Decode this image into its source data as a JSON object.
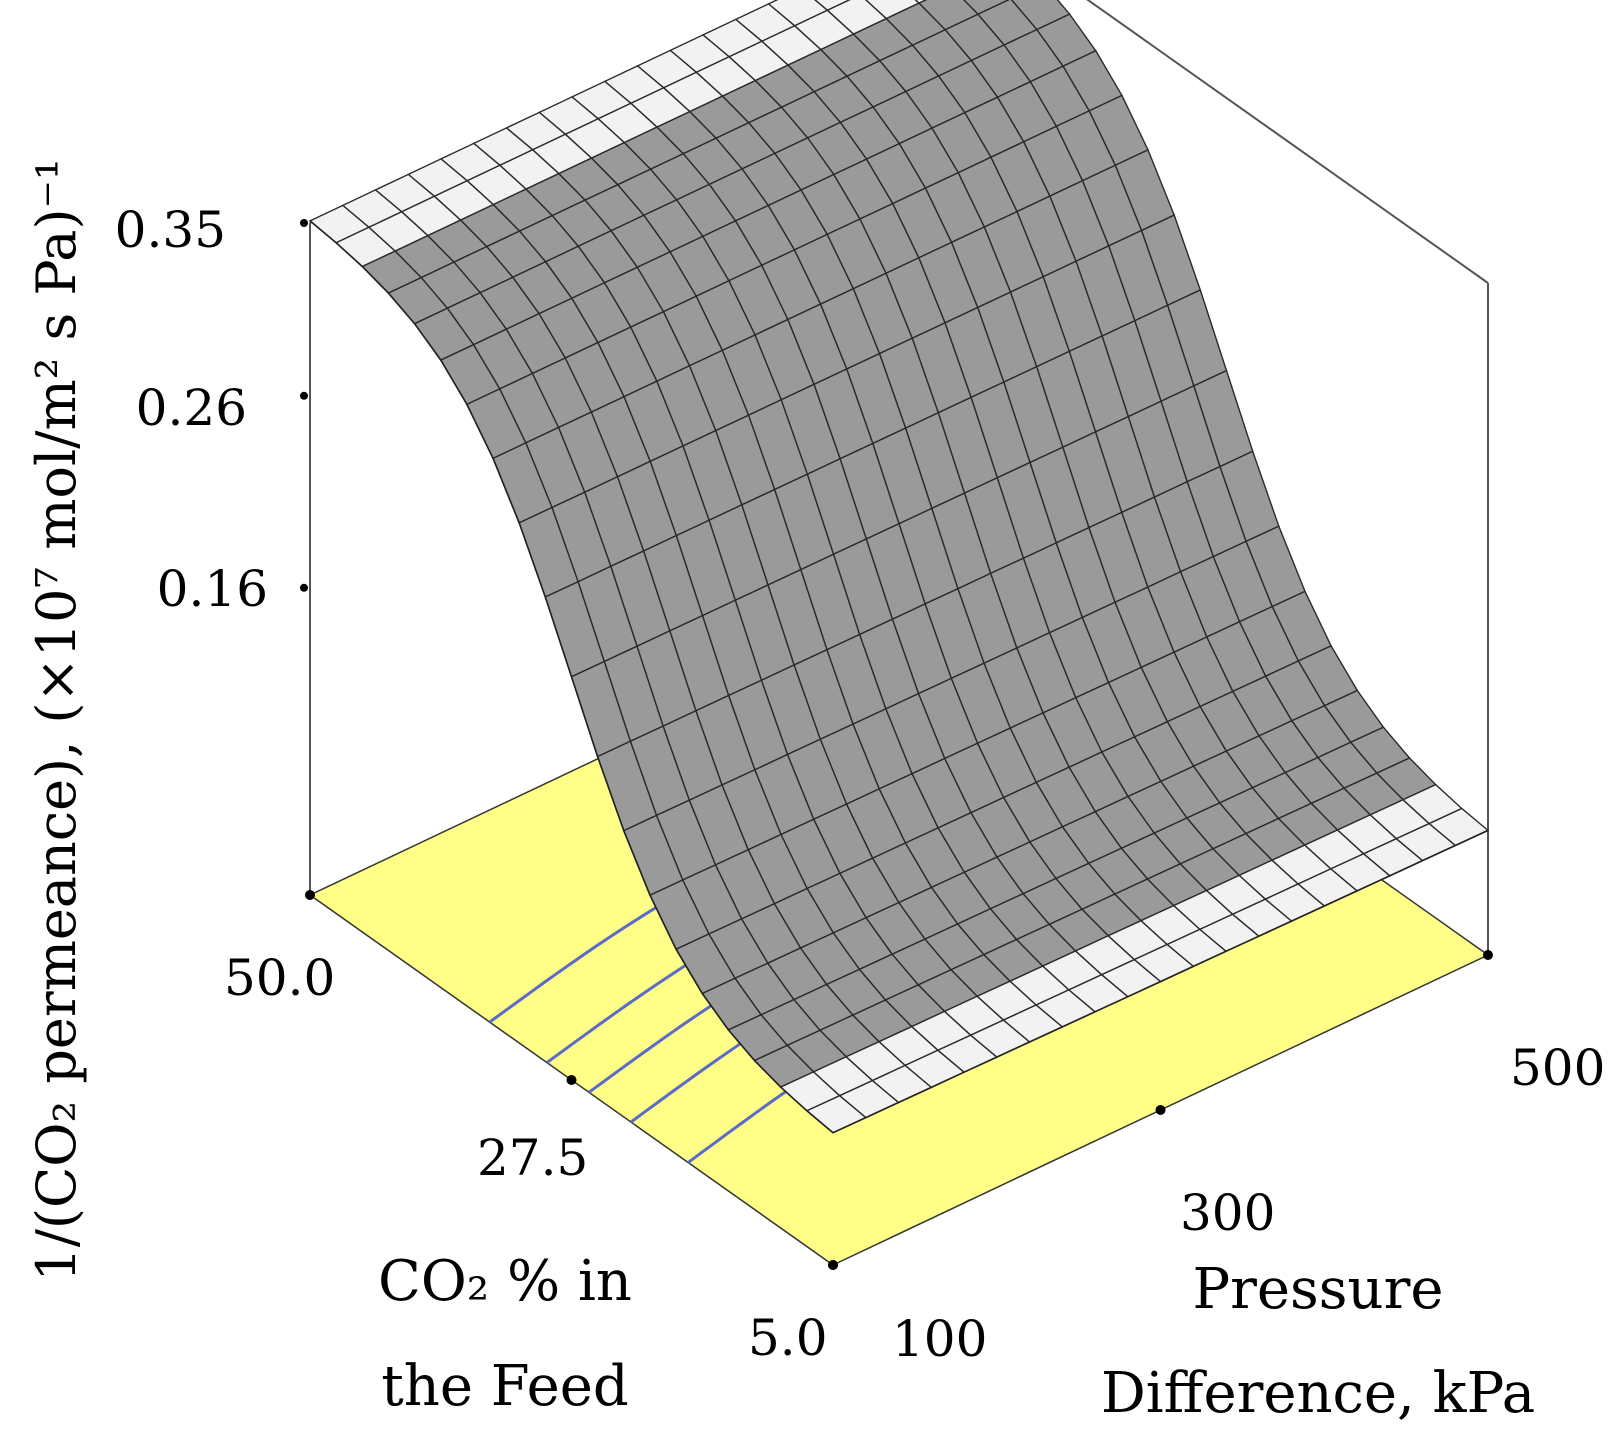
{
  "chart_data": {
    "type": "surface3d",
    "title": "",
    "zlabel": "1/(CO₂ permeance), (×10⁷ mol/m² s Pa)⁻¹",
    "xlabel_lines": [
      "Pressure",
      "Difference, kPa"
    ],
    "ylabel_lines": [
      "CO₂ % in",
      "the Feed"
    ],
    "x_range": [
      100,
      500
    ],
    "y_range": [
      5.0,
      50.0
    ],
    "z_ticks": [
      "0.35",
      "0.26",
      "0.16"
    ],
    "x_ticks": [
      "100",
      "300",
      "500"
    ],
    "y_ticks": [
      "50.0",
      "27.5",
      "5.0"
    ],
    "z_tick_values": [
      0.35,
      0.26,
      0.16
    ],
    "x_tick_values": [
      100,
      300,
      500
    ],
    "y_tick_values": [
      50.0,
      27.5,
      5.0
    ],
    "surface": {
      "description_values": "z depends mainly on CO2 % in the Feed; sigmoid rise from ~0.07 at 5% to 0.35 at 50%",
      "z_min": 0.07,
      "z_max": 0.35,
      "grid_divisions": 20
    },
    "contour_levels": [
      0.11,
      0.16,
      0.21,
      0.26,
      0.31
    ],
    "colors": {
      "surface": "#9a9a9a",
      "surface_light": "#f2f2f2",
      "grid_line": "#2a2a2a",
      "floor": "#ffff88",
      "contour": "#5a6bc8",
      "frame": "#555555"
    },
    "grid": true
  }
}
